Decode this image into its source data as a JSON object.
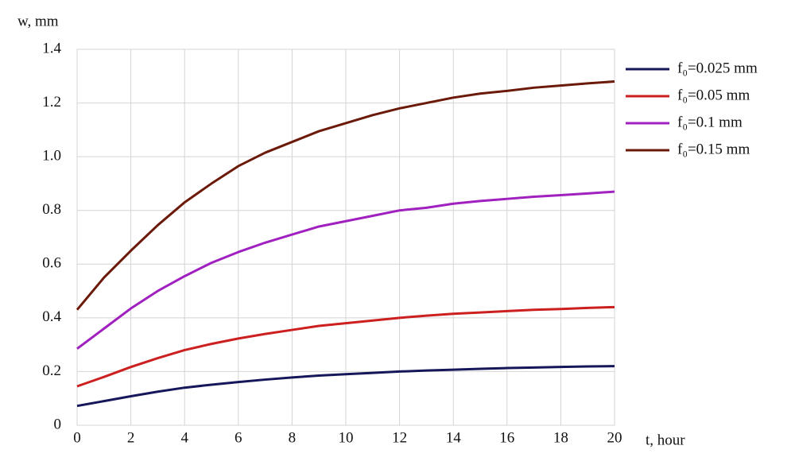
{
  "chart_data": {
    "type": "line",
    "y_label": "w, mm",
    "x_label": "t, hour",
    "x": [
      0,
      1,
      2,
      3,
      4,
      5,
      6,
      7,
      8,
      9,
      10,
      11,
      12,
      13,
      14,
      15,
      16,
      17,
      18,
      19,
      20
    ],
    "series": [
      {
        "name": "f₀=0.025 mm",
        "color": "#16165a",
        "values": [
          0.072,
          0.09,
          0.108,
          0.125,
          0.14,
          0.151,
          0.161,
          0.17,
          0.178,
          0.185,
          0.19,
          0.195,
          0.2,
          0.204,
          0.207,
          0.21,
          0.213,
          0.215,
          0.217,
          0.219,
          0.22
        ]
      },
      {
        "name": "f₀=0.05 mm",
        "color": "#cc1f1f",
        "values": [
          0.145,
          0.18,
          0.217,
          0.25,
          0.28,
          0.303,
          0.323,
          0.34,
          0.355,
          0.37,
          0.38,
          0.39,
          0.4,
          0.408,
          0.415,
          0.42,
          0.425,
          0.43,
          0.433,
          0.437,
          0.44
        ]
      },
      {
        "name": "f₀=0.1 mm",
        "color": "#a020c0",
        "values": [
          0.285,
          0.36,
          0.435,
          0.5,
          0.555,
          0.605,
          0.645,
          0.68,
          0.71,
          0.74,
          0.76,
          0.78,
          0.8,
          0.81,
          0.825,
          0.835,
          0.843,
          0.851,
          0.857,
          0.863,
          0.87
        ]
      },
      {
        "name": "f₀=0.15 mm",
        "color": "#6b1a0a",
        "values": [
          0.43,
          0.55,
          0.65,
          0.745,
          0.83,
          0.9,
          0.965,
          1.015,
          1.055,
          1.095,
          1.125,
          1.155,
          1.18,
          1.2,
          1.22,
          1.235,
          1.245,
          1.257,
          1.265,
          1.273,
          1.28
        ]
      }
    ],
    "xlim": [
      0,
      20
    ],
    "xticks": [
      0,
      2,
      4,
      6,
      8,
      10,
      12,
      14,
      16,
      18,
      20
    ],
    "ylim": [
      0,
      1.4
    ],
    "yticks": [
      0,
      0.2,
      0.4,
      0.6,
      0.8,
      {
        "value": 1,
        "label": "1.0"
      },
      1.2,
      1.4
    ],
    "grid": true,
    "legend": "right"
  }
}
